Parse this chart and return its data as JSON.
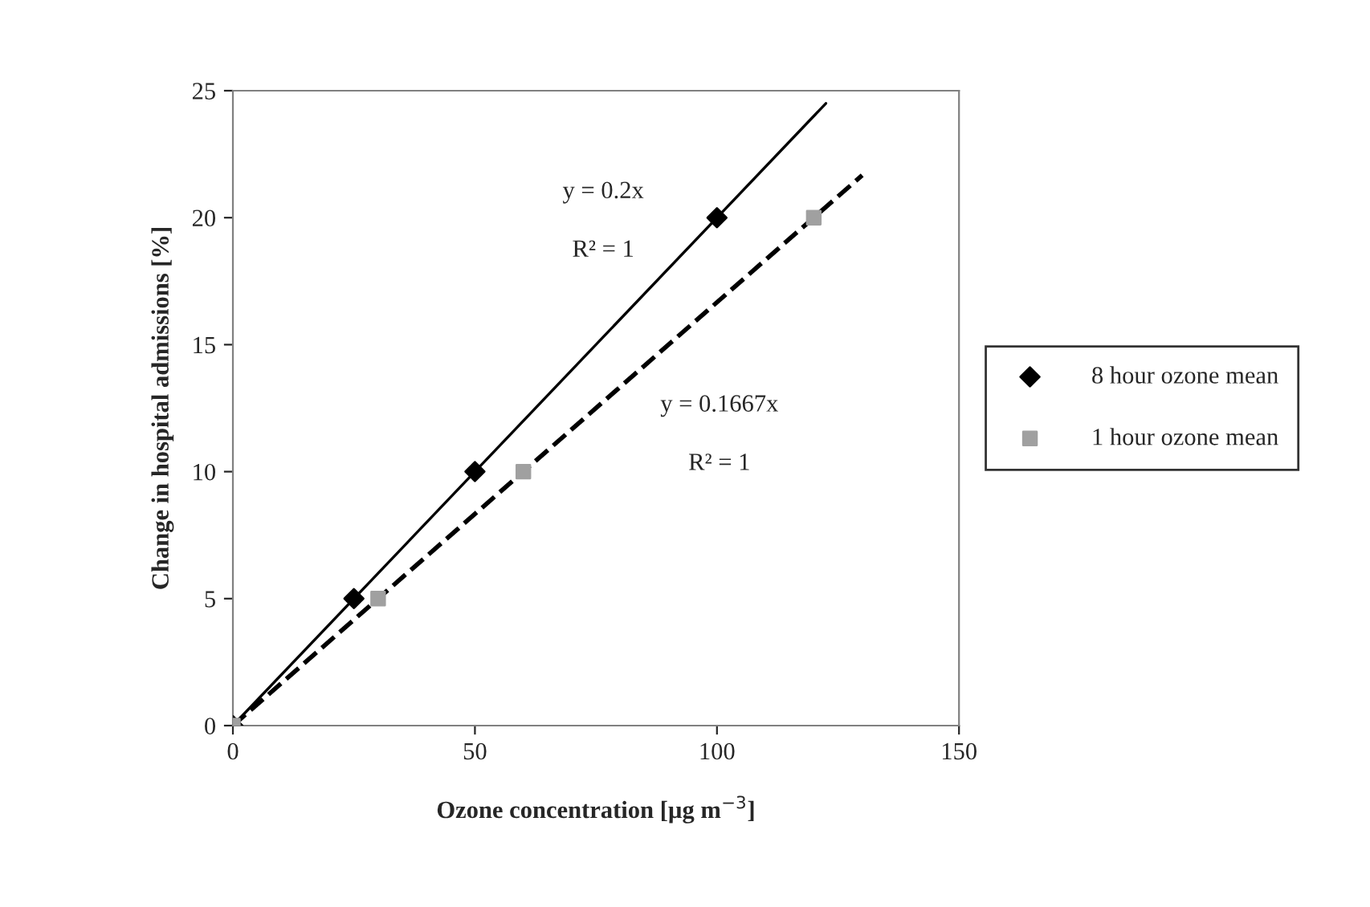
{
  "chart_data": {
    "type": "scatter",
    "xlabel": "Ozone concentration [µg m$^{−3}$]",
    "ylabel": "Change in hospital admissions [%]",
    "xlim": [
      0,
      150
    ],
    "xticks": [
      0,
      50,
      100,
      150
    ],
    "ylim": [
      0,
      25
    ],
    "yticks": [
      0,
      5,
      10,
      15,
      20,
      25
    ],
    "grid": false,
    "legend": "right",
    "series": [
      {
        "name": "8 hour ozone mean",
        "color": "#000000",
        "marker": "diamond",
        "x": [
          0,
          25,
          50,
          100
        ],
        "values": [
          0,
          5,
          10,
          20
        ]
      },
      {
        "name": "1 hour ozone mean",
        "color": "#a0a0a0",
        "marker": "square",
        "x": [
          0,
          30,
          60,
          120
        ],
        "values": [
          0,
          5,
          10,
          20
        ]
      },
      {
        "type": "line",
        "color": "#000000",
        "marker": "none",
        "line_style": "solid",
        "x": [
          0,
          122.5
        ],
        "values": [
          0,
          24.5
        ]
      },
      {
        "type": "line",
        "color": "#000000",
        "marker": "none",
        "line_style": "dashed",
        "x": [
          0,
          130
        ],
        "values": [
          0,
          21.67
        ]
      }
    ],
    "annotations": [
      "y = 0.2x",
      "R² = 1",
      "y = 0.1667x",
      "R² = 1"
    ]
  }
}
